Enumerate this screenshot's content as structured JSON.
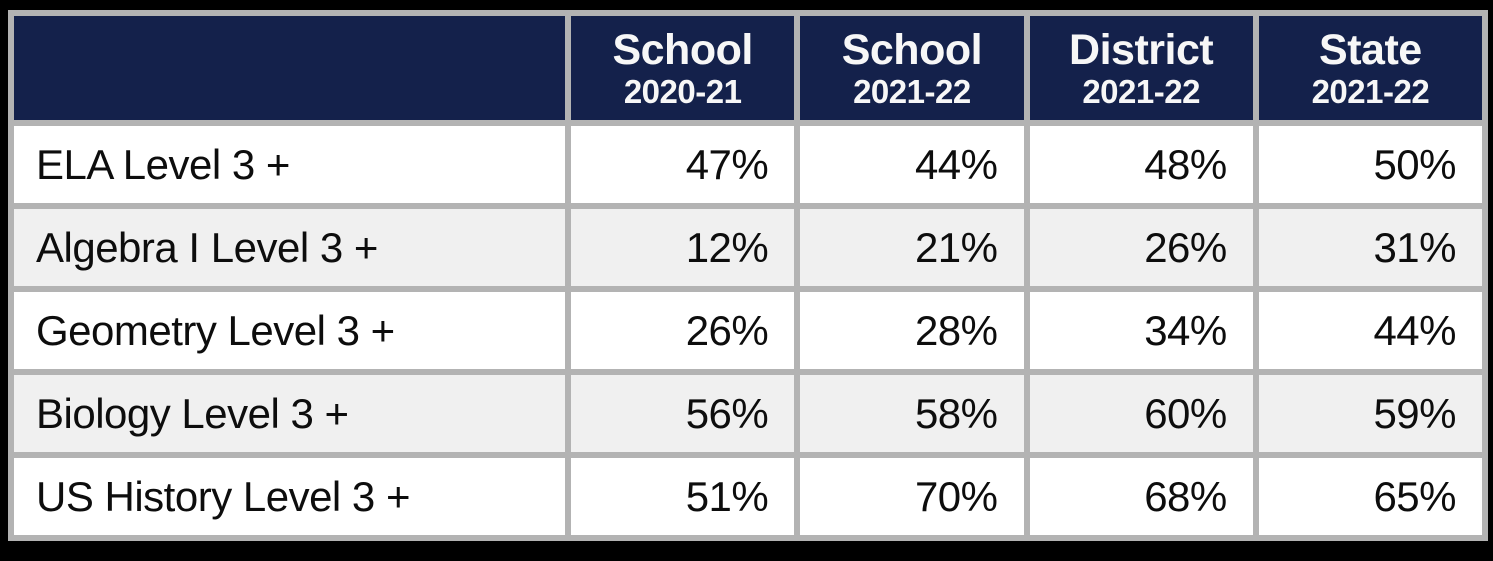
{
  "chart_data": {
    "type": "table",
    "columns": [
      {
        "label": "School",
        "sublabel": "2020-21"
      },
      {
        "label": "School",
        "sublabel": "2021-22"
      },
      {
        "label": "District",
        "sublabel": "2021-22"
      },
      {
        "label": "State",
        "sublabel": "2021-22"
      }
    ],
    "rows": [
      {
        "label": "ELA Level 3 +",
        "values": [
          "47%",
          "44%",
          "48%",
          "50%"
        ]
      },
      {
        "label": "Algebra I Level 3 +",
        "values": [
          "12%",
          "21%",
          "26%",
          "31%"
        ]
      },
      {
        "label": "Geometry Level 3 +",
        "values": [
          "26%",
          "28%",
          "34%",
          "44%"
        ]
      },
      {
        "label": "Biology Level 3 +",
        "values": [
          "56%",
          "58%",
          "60%",
          "59%"
        ]
      },
      {
        "label": "US History Level 3 +",
        "values": [
          "51%",
          "70%",
          "68%",
          "65%"
        ]
      }
    ]
  },
  "colors": {
    "header_bg": "#14214b",
    "header_text": "#f7f7f7",
    "border": "#b3b3b3",
    "row_bg": "#ffffff",
    "row_alt_bg": "#f0f0f0",
    "outer_bg": "#000000",
    "body_text": "#0d0d0d"
  }
}
